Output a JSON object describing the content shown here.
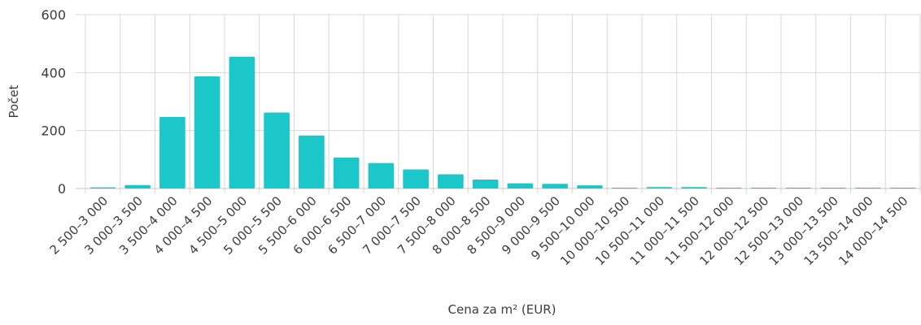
{
  "chart_data": {
    "type": "bar",
    "xlabel": "Cena za m² (EUR)",
    "ylabel": "Počet",
    "ylim": [
      0,
      600
    ],
    "yticks": [
      "0",
      "200",
      "400",
      "600"
    ],
    "grid": true,
    "color": "#1cc7c9",
    "categories": [
      "2 500–3 000",
      "3 000–3 500",
      "3 500–4 000",
      "4 000–4 500",
      "4 500–5 000",
      "5 000–5 500",
      "5 500–6 000",
      "6 000–6 500",
      "6 500–7 000",
      "7 000–7 500",
      "7 500–8 000",
      "8 000–8 500",
      "8 500–9 000",
      "9 000–9 500",
      "9 500–10 000",
      "10 000–10 500",
      "10 500–11 000",
      "11 000–11 500",
      "11 500–12 000",
      "12 000–12 500",
      "12 500–13 000",
      "13 000–13 500",
      "13 500–14 000",
      "14 000–14 500"
    ],
    "values": [
      4,
      12,
      247,
      387,
      455,
      262,
      183,
      107,
      88,
      66,
      49,
      31,
      18,
      16,
      11,
      0,
      5,
      5,
      2,
      1,
      1,
      0,
      0,
      2
    ]
  }
}
